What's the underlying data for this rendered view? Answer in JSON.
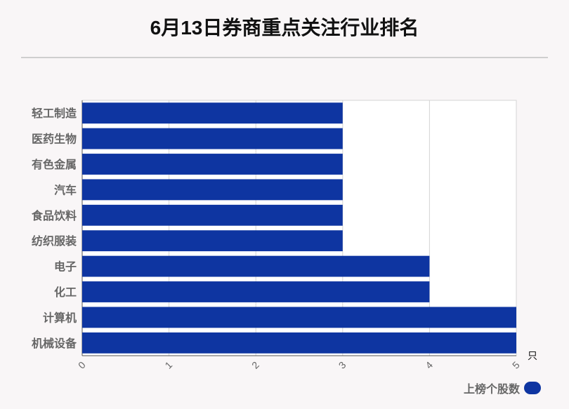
{
  "title": "6月13日券商重点关注行业排名",
  "chart_data": {
    "type": "bar",
    "orientation": "horizontal",
    "categories": [
      "轻工制造",
      "医药生物",
      "有色金属",
      "汽车",
      "食品饮料",
      "纺织服装",
      "电子",
      "化工",
      "计算机",
      "机械设备"
    ],
    "series": [
      {
        "name": "上榜个股数",
        "values": [
          3,
          3,
          3,
          3,
          3,
          3,
          4,
          4,
          5,
          5
        ],
        "color": "#0e35a1"
      }
    ],
    "xlim": [
      0,
      5
    ],
    "x_ticks": [
      "0",
      "1",
      "2",
      "3",
      "4",
      "5"
    ],
    "x_unit": "只",
    "grid": true,
    "legend_position": "bottom-right"
  }
}
